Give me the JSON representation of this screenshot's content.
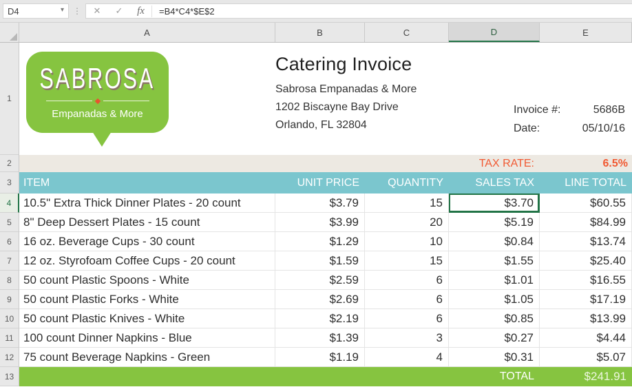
{
  "formula_bar": {
    "cell_reference": "D4",
    "formula": "=B4*C4*$E$2",
    "icons": {
      "dropdown": "▾",
      "resize_dots": "⋮",
      "cancel": "✕",
      "enter": "✓",
      "insert_function": "fx"
    }
  },
  "columns": [
    "A",
    "B",
    "C",
    "D",
    "E"
  ],
  "selected_column": "D",
  "logo": {
    "brand": "SABROSA",
    "tagline": "Empanadas & More"
  },
  "invoice": {
    "row_number": "1",
    "title": "Catering Invoice",
    "company": "Sabrosa Empanadas & More",
    "address_line1": "1202 Biscayne Bay Drive",
    "address_line2": "Orlando, FL 32804",
    "invoice_label": "Invoice #:",
    "invoice_number": "5686B",
    "date_label": "Date:",
    "date_value": "05/10/16"
  },
  "tax": {
    "row_number": "2",
    "label": "TAX RATE:",
    "rate": "6.5%"
  },
  "table": {
    "header_row_number": "3",
    "headers": {
      "item": "ITEM",
      "unit_price": "UNIT PRICE",
      "quantity": "QUANTITY",
      "sales_tax": "SALES TAX",
      "line_total": "LINE TOTAL"
    },
    "rows": [
      {
        "row_number": "4",
        "item": "10.5\" Extra Thick Dinner Plates - 20 count",
        "unit_price": "$3.79",
        "quantity": "15",
        "sales_tax": "$3.70",
        "line_total": "$60.55"
      },
      {
        "row_number": "5",
        "item": "8\" Deep Dessert Plates - 15 count",
        "unit_price": "$3.99",
        "quantity": "20",
        "sales_tax": "$5.19",
        "line_total": "$84.99"
      },
      {
        "row_number": "6",
        "item": "16 oz. Beverage Cups - 30 count",
        "unit_price": "$1.29",
        "quantity": "10",
        "sales_tax": "$0.84",
        "line_total": "$13.74"
      },
      {
        "row_number": "7",
        "item": "12 oz. Styrofoam Coffee Cups - 20 count",
        "unit_price": "$1.59",
        "quantity": "15",
        "sales_tax": "$1.55",
        "line_total": "$25.40"
      },
      {
        "row_number": "8",
        "item": "50 count Plastic Spoons - White",
        "unit_price": "$2.59",
        "quantity": "6",
        "sales_tax": "$1.01",
        "line_total": "$16.55"
      },
      {
        "row_number": "9",
        "item": "50 count Plastic Forks - White",
        "unit_price": "$2.69",
        "quantity": "6",
        "sales_tax": "$1.05",
        "line_total": "$17.19"
      },
      {
        "row_number": "10",
        "item": "50 count Plastic Knives - White",
        "unit_price": "$2.19",
        "quantity": "6",
        "sales_tax": "$0.85",
        "line_total": "$13.99"
      },
      {
        "row_number": "11",
        "item": "100 count Dinner Napkins - Blue",
        "unit_price": "$1.39",
        "quantity": "3",
        "sales_tax": "$0.27",
        "line_total": "$4.44"
      },
      {
        "row_number": "12",
        "item": "75 count Beverage Napkins - Green",
        "unit_price": "$1.19",
        "quantity": "4",
        "sales_tax": "$0.31",
        "line_total": "$5.07"
      }
    ],
    "total_row_number": "13",
    "total_label": "TOTAL",
    "total_value": "$241.91"
  },
  "colors": {
    "teal_header": "#7BC6CE",
    "brand_green": "#86C440",
    "accent_orange": "#F15A33",
    "selection_green": "#217346",
    "tax_row_beige": "#EDE9E2"
  }
}
